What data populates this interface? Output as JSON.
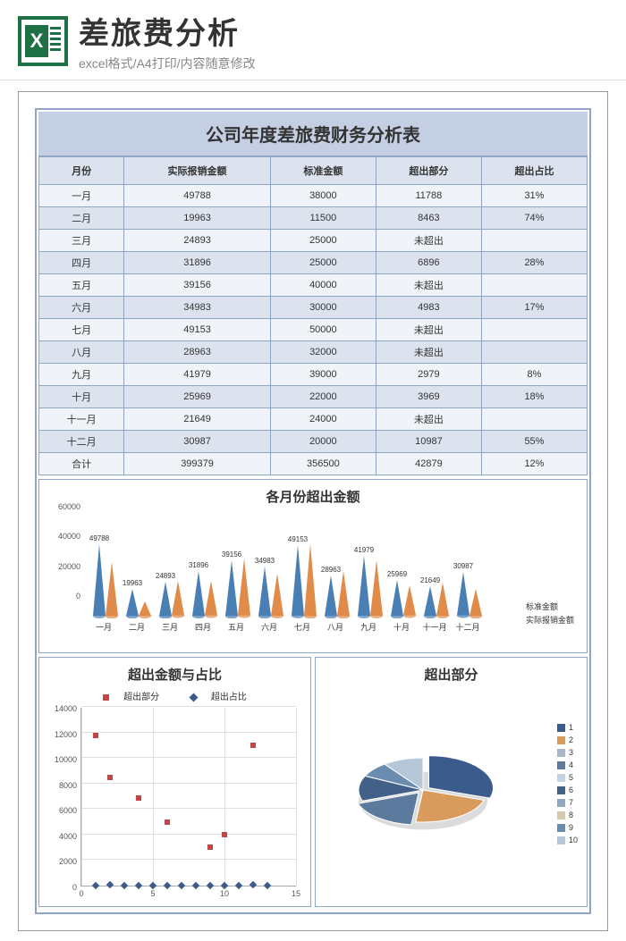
{
  "header": {
    "title": "差旅费分析",
    "subtitle": "excel格式/A4打印/内容随意修改"
  },
  "main_title": "公司年度差旅费财务分析表",
  "table": {
    "columns": [
      "月份",
      "实际报销金额",
      "标准金额",
      "超出部分",
      "超出占比"
    ],
    "rows": [
      [
        "一月",
        "49788",
        "38000",
        "11788",
        "31%"
      ],
      [
        "二月",
        "19963",
        "11500",
        "8463",
        "74%"
      ],
      [
        "三月",
        "24893",
        "25000",
        "未超出",
        ""
      ],
      [
        "四月",
        "31896",
        "25000",
        "6896",
        "28%"
      ],
      [
        "五月",
        "39156",
        "40000",
        "未超出",
        ""
      ],
      [
        "六月",
        "34983",
        "30000",
        "4983",
        "17%"
      ],
      [
        "七月",
        "49153",
        "50000",
        "未超出",
        ""
      ],
      [
        "八月",
        "28963",
        "32000",
        "未超出",
        ""
      ],
      [
        "九月",
        "41979",
        "39000",
        "2979",
        "8%"
      ],
      [
        "十月",
        "25969",
        "22000",
        "3969",
        "18%"
      ],
      [
        "十一月",
        "21649",
        "24000",
        "未超出",
        ""
      ],
      [
        "十二月",
        "30987",
        "20000",
        "10987",
        "55%"
      ],
      [
        "合计",
        "399379",
        "356500",
        "42879",
        "12%"
      ]
    ]
  },
  "cone_chart": {
    "title": "各月份超出金额",
    "months": [
      "一月",
      "二月",
      "三月",
      "四月",
      "五月",
      "六月",
      "七月",
      "八月",
      "九月",
      "十月",
      "十一月",
      "十二月"
    ],
    "actual": [
      49788,
      19963,
      24893,
      31896,
      39156,
      34983,
      49153,
      28963,
      41979,
      25969,
      21649,
      30987
    ],
    "standard": [
      38000,
      11500,
      25000,
      25000,
      40000,
      30000,
      50000,
      32000,
      39000,
      22000,
      24000,
      20000
    ],
    "ylim": [
      0,
      60000
    ],
    "yticks": [
      0,
      20000,
      40000,
      60000
    ],
    "color_actual": "#4a7fb5",
    "color_standard": "#e08b4a",
    "legend": [
      "标准金额",
      "实际报销金额"
    ]
  },
  "scatter_chart": {
    "title": "超出金额与占比",
    "legend": [
      "超出部分",
      "超出占比"
    ],
    "color1": "#c44545",
    "color2": "#3a5b8c",
    "ylim": [
      0,
      14000
    ],
    "yticks": [
      0,
      2000,
      4000,
      6000,
      8000,
      10000,
      12000,
      14000
    ],
    "xlim": [
      0,
      15
    ],
    "xticks": [
      0,
      5,
      10,
      15
    ],
    "series1": [
      [
        1,
        11788
      ],
      [
        2,
        8463
      ],
      [
        4,
        6896
      ],
      [
        6,
        4983
      ],
      [
        9,
        2979
      ],
      [
        10,
        3969
      ],
      [
        12,
        10987
      ]
    ],
    "series2": [
      [
        1,
        31
      ],
      [
        2,
        74
      ],
      [
        3,
        0
      ],
      [
        4,
        28
      ],
      [
        5,
        0
      ],
      [
        6,
        17
      ],
      [
        7,
        0
      ],
      [
        8,
        0
      ],
      [
        9,
        8
      ],
      [
        10,
        18
      ],
      [
        11,
        0
      ],
      [
        12,
        55
      ],
      [
        13,
        12
      ]
    ]
  },
  "pie_chart": {
    "title": "超出部分",
    "slices": [
      {
        "label": "1",
        "value": 11788,
        "color": "#3a5b8c"
      },
      {
        "label": "2",
        "value": 8463,
        "color": "#d89b5c"
      },
      {
        "label": "3",
        "value": 1,
        "color": "#a8b8cc"
      },
      {
        "label": "4",
        "value": 6896,
        "color": "#5b7a9e"
      },
      {
        "label": "5",
        "value": 1,
        "color": "#c5d4e3"
      },
      {
        "label": "6",
        "value": 4983,
        "color": "#426088"
      },
      {
        "label": "7",
        "value": 1,
        "color": "#8fa8c2"
      },
      {
        "label": "8",
        "value": 1,
        "color": "#d4c9a8"
      },
      {
        "label": "9",
        "value": 2979,
        "color": "#6a8caf"
      },
      {
        "label": "10",
        "value": 3969,
        "color": "#b5c7d9"
      }
    ]
  }
}
